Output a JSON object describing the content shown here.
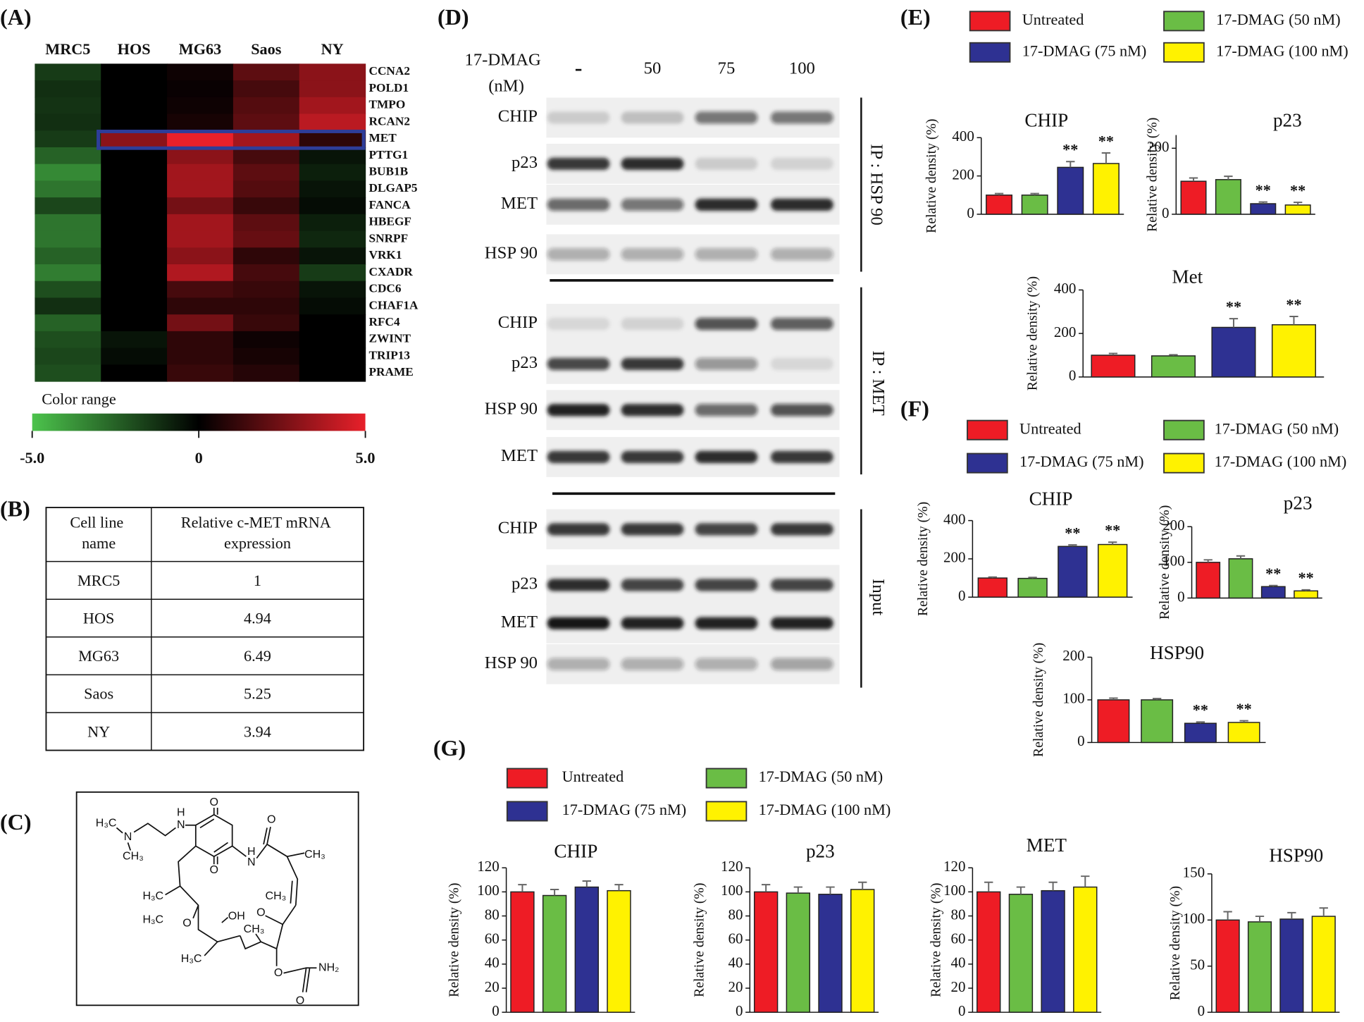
{
  "panel_labels": [
    "(A)",
    "(B)",
    "(C)",
    "(D)",
    "(E)",
    "(F)",
    "(G)"
  ],
  "heatmap": {
    "columns": [
      "MRC5",
      "HOS",
      "MG63",
      "Saos",
      "NY"
    ],
    "rows": [
      "CCNA2",
      "POLD1",
      "TMPO",
      "RCAN2",
      "MET",
      "PTTG1",
      "BUB1B",
      "DLGAP5",
      "FANCA",
      "HBEGF",
      "SNRPF",
      "VRK1",
      "CXADR",
      "CDC6",
      "CHAF1A",
      "RFC4",
      "ZWINT",
      "TRIP13",
      "PRAME"
    ],
    "values": [
      [
        -1.5,
        0,
        0.3,
        2,
        3
      ],
      [
        -1.2,
        0,
        0.2,
        1.5,
        3
      ],
      [
        -1.3,
        0,
        0.3,
        1.8,
        3.5
      ],
      [
        -1.2,
        0,
        0.5,
        2,
        4
      ],
      [
        -1.5,
        3,
        5,
        3.5,
        1
      ],
      [
        -2.5,
        0,
        3,
        1.5,
        -0.5
      ],
      [
        -3.5,
        0,
        3.5,
        2,
        -0.8
      ],
      [
        -3,
        0,
        3.5,
        1.8,
        -0.5
      ],
      [
        -1.8,
        0,
        2.5,
        1.2,
        -0.3
      ],
      [
        -3,
        0,
        3.5,
        2,
        -0.8
      ],
      [
        -3,
        0,
        3.5,
        2.2,
        -1
      ],
      [
        -2.5,
        0,
        3,
        1,
        -0.5
      ],
      [
        -3.2,
        0,
        3.8,
        1.5,
        -1.5
      ],
      [
        -2,
        0,
        1.5,
        1.2,
        -0.5
      ],
      [
        -1.2,
        0,
        1,
        1,
        -0.3
      ],
      [
        -2.5,
        0,
        2.5,
        1.2,
        0
      ],
      [
        -2,
        -0.5,
        1,
        0.3,
        0
      ],
      [
        -1.8,
        -0.3,
        1,
        0.5,
        0
      ],
      [
        -2,
        0,
        1.2,
        0.8,
        0
      ]
    ],
    "colorbar": {
      "title": "Color range",
      "lim": [
        -5,
        5
      ],
      "ticks": [
        {
          "value": -5,
          "label": "-5.0"
        },
        0,
        {
          "value": 5,
          "label": "5.0"
        }
      ],
      "colors": [
        "#4cc34c",
        "#000000",
        "#e8202a"
      ]
    },
    "highlight": {
      "row": 4,
      "box_color": "#2e3d99",
      "label_color": "#e8211f"
    }
  },
  "table": {
    "header": [
      "Cell line name",
      "Relative c-MET mRNA expression"
    ],
    "rows": [
      [
        "MRC5",
        1
      ],
      [
        "HOS",
        4.94
      ],
      [
        "MG63",
        6.49
      ],
      [
        "Saos",
        5.25
      ],
      [
        "NY",
        3.94
      ]
    ]
  },
  "structure": {
    "atoms": [
      "H₃C",
      "N",
      "CH₃",
      "H",
      "N",
      "O",
      "O",
      "H",
      "N",
      "O",
      "CH₃",
      "H₃C",
      "CH₃",
      "O",
      "H₃C",
      "OH",
      "O",
      "H₃C",
      "CH₃",
      "O",
      "NH₂",
      "O"
    ]
  },
  "blot": {
    "treatment": [
      "17-DMAG",
      "(nM)"
    ],
    "lanes": [
      "-",
      "50",
      "75",
      "100"
    ],
    "groups": [
      {
        "label": "IP : HSP 90",
        "rows": [
          {
            "name": "CHIP",
            "intensity": [
              0.15,
              0.2,
              0.55,
              0.55
            ]
          },
          {
            "name": "p23",
            "intensity": [
              0.85,
              0.9,
              0.15,
              0.12
            ]
          },
          {
            "name": "MET",
            "intensity": [
              0.6,
              0.55,
              0.9,
              0.9
            ]
          },
          {
            "name": "HSP 90",
            "intensity": [
              0.3,
              0.3,
              0.3,
              0.3
            ]
          }
        ]
      },
      {
        "label": "IP : MET",
        "rows": [
          {
            "name": "CHIP",
            "intensity": [
              0.1,
              0.12,
              0.7,
              0.65
            ]
          },
          {
            "name": "p23",
            "intensity": [
              0.75,
              0.85,
              0.4,
              0.1
            ]
          },
          {
            "name": "HSP 90",
            "intensity": [
              0.95,
              0.9,
              0.6,
              0.7
            ]
          },
          {
            "name": "MET",
            "intensity": [
              0.85,
              0.85,
              0.9,
              0.85
            ]
          }
        ]
      },
      {
        "label": "Input",
        "rows": [
          {
            "name": "CHIP",
            "intensity": [
              0.85,
              0.85,
              0.8,
              0.85
            ]
          },
          {
            "name": "p23",
            "intensity": [
              0.9,
              0.8,
              0.8,
              0.8
            ]
          },
          {
            "name": "MET",
            "intensity": [
              1,
              0.95,
              0.95,
              0.95
            ]
          },
          {
            "name": "HSP 90",
            "intensity": [
              0.3,
              0.3,
              0.3,
              0.35
            ]
          }
        ]
      }
    ]
  },
  "legends": [
    [
      {
        "name": "Untreated",
        "color": "#ee1c25"
      },
      {
        "name": "17-DMAG (50 nM)",
        "color": "#6abd45"
      },
      {
        "name": "17-DMAG (75 nM)",
        "color": "#2e3192"
      },
      {
        "name": "17-DMAG (100 nM)",
        "color": "#fff200"
      }
    ],
    [
      {
        "name": "Untreated",
        "color": "#ee1c25"
      },
      {
        "name": "17-DMAG (50 nM)",
        "color": "#6abd45"
      },
      {
        "name": "17-DMAG (75 nM)",
        "color": "#2e3192"
      },
      {
        "name": "17-DMAG (100 nM)",
        "color": "#fff200"
      }
    ],
    [
      {
        "name": "Untreated",
        "color": "#ee1c25"
      },
      {
        "name": "17-DMAG (50 nM)",
        "color": "#6abd45"
      },
      {
        "name": "17-DMAG (75 nM)",
        "color": "#2e3192"
      },
      {
        "name": "17-DMAG (100 nM)",
        "color": "#fff200"
      }
    ]
  ],
  "chart_data": [
    {
      "type": "bar",
      "title": "CHIP",
      "y_label": "Relative density (%)",
      "ylim": [
        0,
        400
      ],
      "yticks": [
        0,
        200,
        400
      ],
      "values": [
        100,
        100,
        245,
        265
      ],
      "errors": [
        8,
        8,
        30,
        55
      ],
      "annotations": [
        null,
        null,
        "**",
        "**"
      ]
    },
    {
      "type": "bar",
      "title": "p23",
      "y_label": "Relative density (%)",
      "ylim": [
        0,
        240
      ],
      "yticks": [
        0,
        200
      ],
      "values": [
        100,
        105,
        32,
        28
      ],
      "errors": [
        10,
        10,
        5,
        8
      ],
      "annotations": [
        null,
        null,
        "**",
        "**"
      ]
    },
    {
      "type": "bar",
      "title": "Met",
      "y_label": "Relative density (%)",
      "ylim": [
        0,
        400
      ],
      "yticks": [
        0,
        200,
        400
      ],
      "values": [
        100,
        97,
        228,
        240
      ],
      "errors": [
        8,
        5,
        40,
        38
      ],
      "annotations": [
        null,
        null,
        "**",
        "**"
      ]
    },
    {
      "type": "bar",
      "title": "CHIP",
      "y_label": "Relative density (%)",
      "ylim": [
        0,
        400
      ],
      "yticks": [
        0,
        200,
        400
      ],
      "values": [
        100,
        98,
        265,
        275
      ],
      "errors": [
        5,
        5,
        8,
        12
      ],
      "annotations": [
        null,
        null,
        "**",
        "**"
      ]
    },
    {
      "type": "bar",
      "title": "p23",
      "y_label": "Relative density (%)",
      "ylim": [
        0,
        200
      ],
      "yticks": [
        0,
        100,
        200
      ],
      "values": [
        100,
        110,
        32,
        20
      ],
      "errors": [
        7,
        8,
        3,
        3
      ],
      "annotations": [
        null,
        null,
        "**",
        "**"
      ]
    },
    {
      "type": "bar",
      "title": "HSP90",
      "y_label": "Relative density (%)",
      "ylim": [
        0,
        200
      ],
      "yticks": [
        0,
        100,
        200
      ],
      "values": [
        100,
        100,
        45,
        47
      ],
      "errors": [
        4,
        3,
        3,
        4
      ],
      "annotations": [
        null,
        null,
        "**",
        "**"
      ]
    },
    {
      "type": "bar",
      "title": "CHIP",
      "y_label": "Relative density (%)",
      "ylim": [
        0,
        120
      ],
      "yticks": [
        0,
        20,
        40,
        60,
        80,
        100,
        120
      ],
      "values": [
        100,
        97,
        104,
        101
      ],
      "errors": [
        6,
        5,
        5,
        5
      ],
      "annotations": [
        null,
        null,
        null,
        null
      ]
    },
    {
      "type": "bar",
      "title": "p23",
      "y_label": "Relative density (%)",
      "ylim": [
        0,
        120
      ],
      "yticks": [
        0,
        20,
        40,
        60,
        80,
        100,
        120
      ],
      "values": [
        100,
        99,
        98,
        102
      ],
      "errors": [
        6,
        5,
        6,
        6
      ],
      "annotations": [
        null,
        null,
        null,
        null
      ]
    },
    {
      "type": "bar",
      "title": "MET",
      "y_label": "Relative density (%)",
      "ylim": [
        0,
        120
      ],
      "yticks": [
        0,
        20,
        40,
        60,
        80,
        100,
        120
      ],
      "values": [
        100,
        98,
        101,
        104
      ],
      "errors": [
        8,
        6,
        7,
        9
      ],
      "annotations": [
        null,
        null,
        null,
        null
      ]
    },
    {
      "type": "bar",
      "title": "HSP90",
      "y_label": "Relative density (%)",
      "ylim": [
        0,
        150
      ],
      "yticks": [
        0,
        50,
        100,
        150
      ],
      "values": [
        100,
        98,
        101,
        104
      ],
      "errors": [
        9,
        6,
        7,
        9
      ],
      "annotations": [
        null,
        null,
        null,
        null
      ]
    }
  ]
}
